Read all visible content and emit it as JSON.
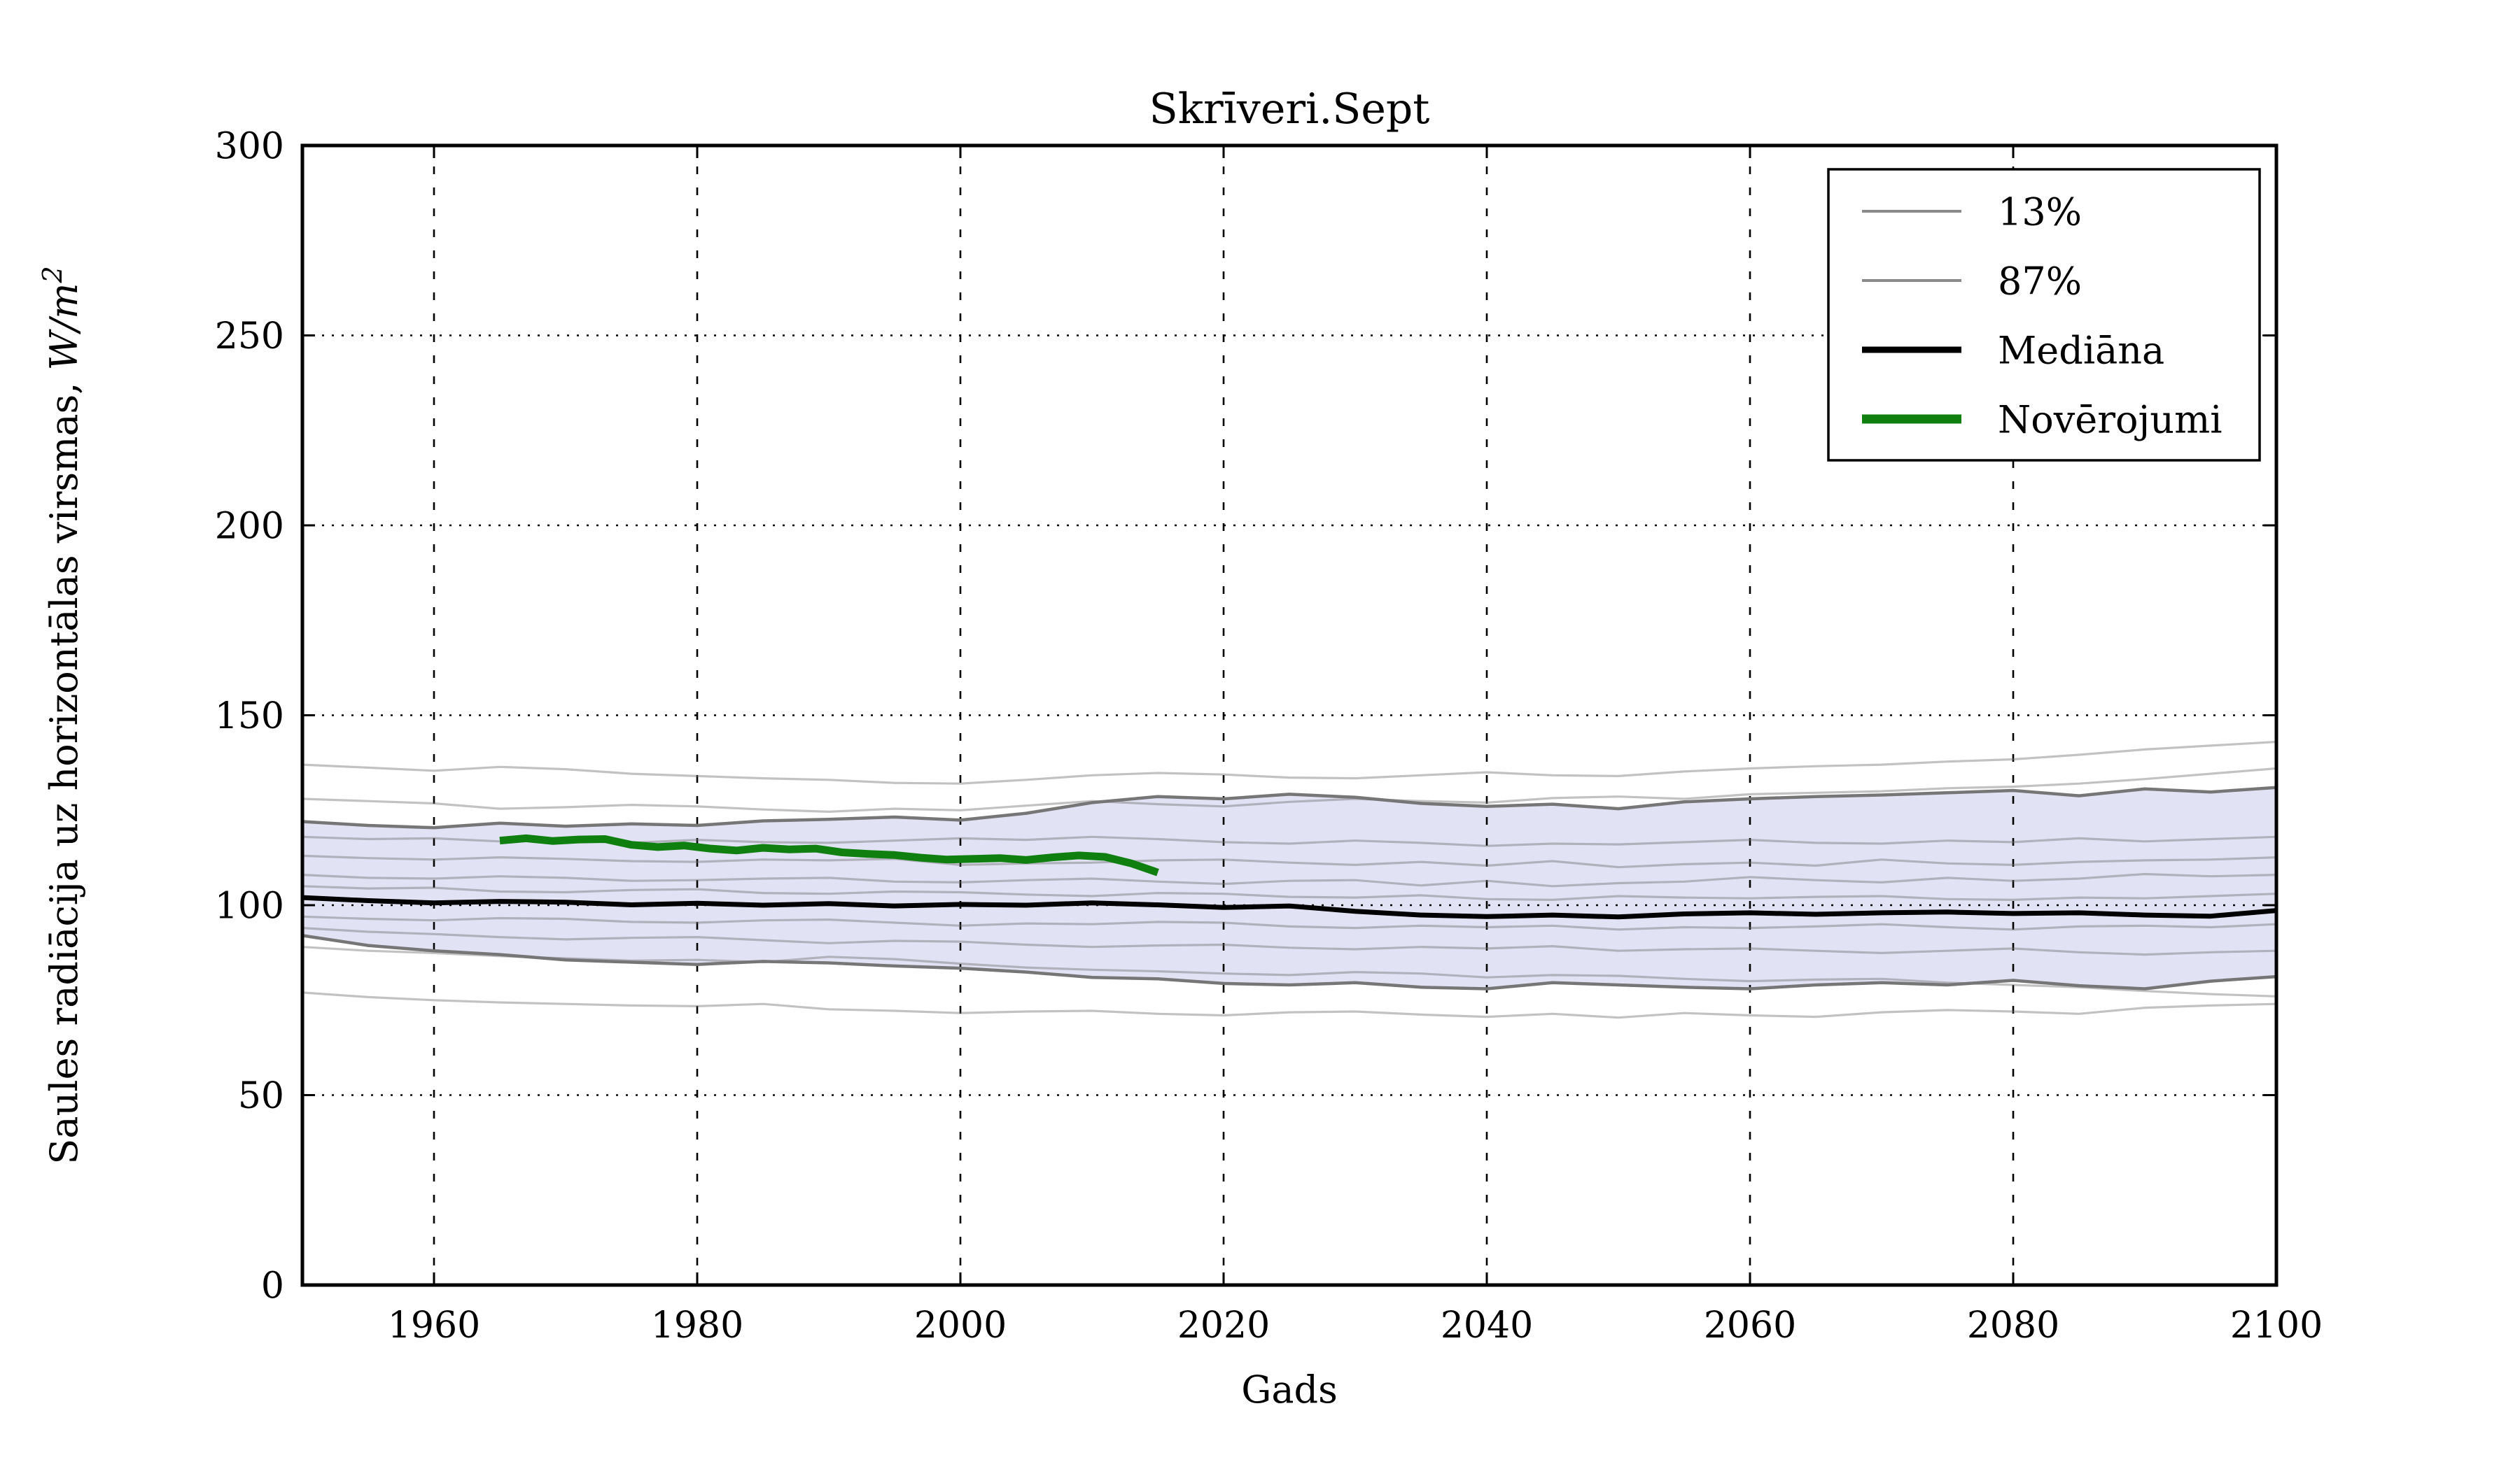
{
  "chart_data": {
    "type": "line",
    "title": "Skrīveri.Sept",
    "xlabel": "Gads",
    "ylabel": "Saules radiācija uz horizontālas virsmas, W/m²",
    "ylabel_parts": {
      "prefix": "Saules radiācija uz horizontālas virsmas, ",
      "math": "W/m",
      "sup": "2"
    },
    "xlim": [
      1950,
      2100
    ],
    "ylim": [
      0,
      300
    ],
    "xticks": [
      1960,
      1980,
      2000,
      2020,
      2040,
      2060,
      2080,
      2100
    ],
    "yticks": [
      0,
      50,
      100,
      150,
      200,
      250,
      300
    ],
    "grid": true,
    "grid_style": "dotted",
    "legend_position": "upper right",
    "colors": {
      "band_fill": "#e2e2f5",
      "percentile_line": "#767676",
      "ensemble_line": "rgba(110,110,110,0.42)",
      "median_line": "#000000",
      "observations_line": "#0f7f0f",
      "grid": "#000000",
      "text": "#000000"
    },
    "legend": [
      {
        "label": "13%",
        "color": "#8a8a8a",
        "width": 4
      },
      {
        "label": "87%",
        "color": "#8a8a8a",
        "width": 4
      },
      {
        "label": "Mediāna",
        "color": "#000000",
        "width": 9
      },
      {
        "label": "Novērojumi",
        "color": "#0f7f0f",
        "width": 13
      }
    ],
    "x": [
      1950,
      1955,
      1960,
      1965,
      1970,
      1975,
      1980,
      1985,
      1990,
      1995,
      2000,
      2005,
      2010,
      2015,
      2020,
      2025,
      2030,
      2035,
      2040,
      2045,
      2050,
      2055,
      2060,
      2065,
      2070,
      2075,
      2080,
      2085,
      2090,
      2095,
      2100
    ],
    "band": {
      "upper_name": "87%",
      "lower_name": "13%",
      "upper": [
        122,
        121,
        120.4,
        121.6,
        120.8,
        121.4,
        121,
        122.2,
        122.6,
        123.2,
        122.4,
        124.2,
        127,
        128.6,
        128,
        129.2,
        128.4,
        126.8,
        126,
        126.6,
        125.4,
        127.2,
        128,
        128.6,
        129,
        129.6,
        130.2,
        128.8,
        130.6,
        129.8,
        131
      ],
      "lower": [
        92,
        89.4,
        88,
        87,
        85.6,
        85,
        84.4,
        85.2,
        84.8,
        84,
        83.4,
        82.4,
        81,
        80.6,
        79.4,
        79,
        79.6,
        78.4,
        78,
        79.6,
        79,
        78.4,
        78,
        79,
        79.6,
        79,
        80.2,
        78.8,
        78,
        80,
        81.2
      ]
    },
    "series": [
      {
        "name": "ensemble-1",
        "role": "ensemble",
        "values": [
          137,
          136.2,
          135.4,
          136.4,
          135.8,
          134.6,
          134,
          133.4,
          133,
          132.2,
          132,
          133,
          134.2,
          134.8,
          134.4,
          133.6,
          133.4,
          134.2,
          135,
          134.2,
          134,
          135.2,
          136,
          136.6,
          137,
          137.8,
          138.4,
          139.6,
          141,
          142,
          143
        ]
      },
      {
        "name": "ensemble-2",
        "role": "ensemble",
        "values": [
          128,
          127.4,
          126.8,
          125.4,
          125.8,
          126.4,
          126,
          125.2,
          124.6,
          125.4,
          125,
          126.2,
          127.4,
          126.6,
          126,
          127.2,
          128,
          127.4,
          127,
          128.2,
          128.6,
          128,
          129.2,
          129.6,
          130,
          130.8,
          131.2,
          132,
          133.2,
          134.6,
          136
        ]
      },
      {
        "name": "ensemble-3",
        "role": "ensemble",
        "values": [
          118,
          117.4,
          117.6,
          116.8,
          117,
          116.4,
          117.2,
          116.6,
          116.4,
          117,
          117.6,
          117.2,
          118,
          117.4,
          116.6,
          116.2,
          117,
          116.4,
          115.6,
          116.2,
          116,
          116.6,
          117.2,
          116.4,
          116.2,
          117,
          116.6,
          117.6,
          116.8,
          117.4,
          118
        ]
      },
      {
        "name": "ensemble-4",
        "role": "ensemble",
        "values": [
          113,
          112.4,
          112,
          112.6,
          112.2,
          111.6,
          111.4,
          112,
          111.8,
          112.2,
          110.6,
          111,
          111.2,
          111.8,
          112,
          111.2,
          110.6,
          111.4,
          110.4,
          111.6,
          110,
          110.8,
          111.2,
          110.4,
          112,
          111,
          110.6,
          111.4,
          111.8,
          112,
          112.6
        ]
      },
      {
        "name": "ensemble-5",
        "role": "ensemble",
        "values": [
          108,
          107.2,
          107,
          107.6,
          107.2,
          106.4,
          106.6,
          107,
          107.2,
          106.2,
          106,
          106.6,
          107,
          106.2,
          105.6,
          106.4,
          106.6,
          105.2,
          106.4,
          105,
          105.8,
          106.2,
          107.4,
          106.6,
          106,
          107.2,
          106.4,
          107,
          108.2,
          107.6,
          108
        ]
      },
      {
        "name": "ensemble-6",
        "role": "ensemble",
        "values": [
          105,
          104.4,
          104.6,
          103.6,
          103.4,
          104,
          104.2,
          103.2,
          103,
          103.6,
          103.4,
          102.8,
          102.4,
          103.2,
          103,
          102.2,
          102,
          102.6,
          101.6,
          101.4,
          102.4,
          102,
          101.8,
          102.2,
          102.4,
          101.6,
          101.4,
          102,
          101.8,
          102.4,
          103
        ]
      },
      {
        "name": "ensemble-7",
        "role": "ensemble",
        "values": [
          97,
          96.4,
          96,
          96.6,
          96.4,
          95.6,
          95.4,
          96,
          96.2,
          95.4,
          94.6,
          95.2,
          95,
          95.6,
          95.4,
          94.4,
          94,
          94.6,
          94.2,
          94.6,
          93.6,
          94.2,
          94,
          94.4,
          95,
          94.2,
          93.6,
          94.4,
          94.6,
          94.2,
          95
        ]
      },
      {
        "name": "ensemble-8",
        "role": "ensemble",
        "values": [
          94,
          93,
          92.4,
          91.6,
          91,
          91.4,
          91.6,
          90.8,
          90,
          90.6,
          90.4,
          89.6,
          89,
          89.4,
          89.6,
          88.8,
          88.4,
          89,
          88.6,
          89.2,
          88,
          88.4,
          88.6,
          88,
          87.4,
          88,
          88.6,
          87.6,
          87,
          87.6,
          88
        ]
      },
      {
        "name": "ensemble-9",
        "role": "ensemble",
        "values": [
          89,
          88,
          87.4,
          86.6,
          86,
          85.4,
          85.6,
          85,
          86.4,
          85.8,
          84.6,
          83.6,
          83,
          82.6,
          82,
          81.6,
          82.4,
          82,
          81,
          81.6,
          81.4,
          80.6,
          80,
          80.4,
          80.6,
          79.6,
          79,
          78.4,
          77.4,
          76.6,
          76
        ]
      },
      {
        "name": "ensemble-10",
        "role": "ensemble",
        "values": [
          77,
          75.8,
          75,
          74.4,
          74,
          73.6,
          73.4,
          74,
          72.6,
          72.2,
          71.6,
          72,
          72.2,
          71.4,
          71,
          71.8,
          72,
          71.2,
          70.6,
          71.4,
          70.4,
          71.6,
          71,
          70.6,
          71.8,
          72.4,
          72,
          71.4,
          73,
          73.6,
          74
        ]
      },
      {
        "name": "Mediāna",
        "role": "median",
        "values": [
          102,
          101.2,
          100.6,
          101,
          100.8,
          100.1,
          100.5,
          100,
          100.4,
          99.8,
          100.2,
          100,
          100.6,
          100.1,
          99.4,
          99.8,
          98.4,
          97.4,
          97,
          97.4,
          96.9,
          97.7,
          98,
          97.6,
          98,
          98.2,
          97.8,
          98,
          97.4,
          97.1,
          98.6
        ]
      }
    ],
    "observations": {
      "name": "Novērojumi",
      "x": [
        1965,
        1967,
        1969,
        1971,
        1973,
        1975,
        1977,
        1979,
        1981,
        1983,
        1985,
        1987,
        1989,
        1991,
        1993,
        1995,
        1997,
        1999,
        2001,
        2003,
        2005,
        2007,
        2009,
        2011,
        2013,
        2015
      ],
      "values": [
        117,
        117.6,
        116.9,
        117.3,
        117.4,
        115.9,
        115.3,
        115.7,
        114.9,
        114.4,
        115.1,
        114.7,
        114.9,
        113.9,
        113.5,
        113.2,
        112.5,
        112,
        112.2,
        112.4,
        111.9,
        112.6,
        113.1,
        112.7,
        111,
        108.6
      ]
    }
  }
}
